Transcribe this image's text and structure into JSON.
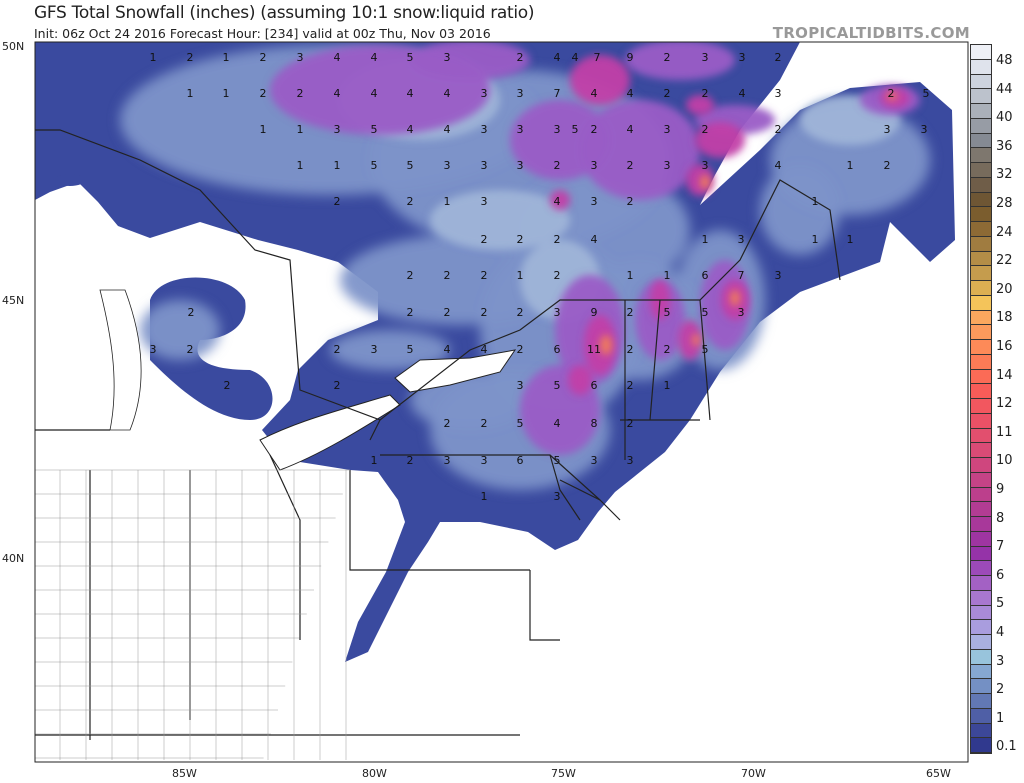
{
  "header": {
    "title": "GFS Total Snowfall (inches) (assuming 10:1 snow:liquid ratio)",
    "subtitle": "Init: 06z Oct 24 2016   Forecast Hour: [234]   valid at 00z Thu, Nov 03 2016",
    "brand": "TROPICALTIDBITS.COM"
  },
  "axes": {
    "lat_labels": [
      "50N",
      "45N",
      "40N"
    ],
    "lon_labels": [
      "85W",
      "80W",
      "75W",
      "70W",
      "65W"
    ]
  },
  "colorbar": {
    "labels": [
      "48",
      "44",
      "40",
      "36",
      "32",
      "28",
      "24",
      "22",
      "20",
      "18",
      "16",
      "14",
      "12",
      "11",
      "10",
      "9",
      "8",
      "7",
      "6",
      "5",
      "4",
      "3",
      "2",
      "1",
      "0.1"
    ],
    "colors": [
      "#eef0f6",
      "#dfe3ec",
      "#cdd3de",
      "#bcc2cc",
      "#aab0b9",
      "#979ca5",
      "#858a93",
      "#7e776e",
      "#776b5c",
      "#6f5d48",
      "#6e5634",
      "#7b5d2e",
      "#8d6a35",
      "#a07c40",
      "#b38d47",
      "#c59c4d",
      "#dcaf52",
      "#f4c45a",
      "#fba75e",
      "#fc9a5c",
      "#fd8a58",
      "#fc7b56",
      "#fb6b56",
      "#f85c58",
      "#f2575f",
      "#ea5166",
      "#e24f6e",
      "#d94b76",
      "#cf467e",
      "#c54386",
      "#bc3f8c",
      "#b23c93",
      "#a8389a",
      "#9e35a1",
      "#9533a8",
      "#9c4ab8",
      "#a361c4",
      "#a877cf",
      "#a98ad7",
      "#a99dde",
      "#a9b0e0",
      "#98c4dc",
      "#86a8d2",
      "#7490c4",
      "#6278b4",
      "#4f5fa6",
      "#3c4798",
      "#30398e"
    ],
    "map_colors": {
      "base": "#3a4a9f",
      "light_blue": "#7d93c9",
      "pale": "#9fb4d8",
      "purple": "#9a5cc6",
      "magenta": "#c23fa8",
      "orange": "#f07d5a"
    }
  },
  "contour_labels": [
    "1",
    "2",
    "1",
    "2",
    "3",
    "4",
    "4",
    "5",
    "3",
    "2",
    "4",
    "4",
    "7",
    "9",
    "2",
    "3",
    "3",
    "2",
    "1",
    "1",
    "2",
    "2",
    "4",
    "4",
    "4",
    "4",
    "3",
    "3",
    "7",
    "4",
    "4",
    "2",
    "2",
    "4",
    "3",
    "1",
    "1",
    "3",
    "5",
    "4",
    "4",
    "3",
    "3",
    "3",
    "5",
    "2",
    "4",
    "3",
    "2",
    "2",
    "2",
    "5",
    "3",
    "3",
    "1",
    "1",
    "5",
    "5",
    "3",
    "3",
    "3",
    "2",
    "3",
    "2",
    "3",
    "3",
    "4",
    "1",
    "2",
    "2",
    "2",
    "1",
    "3",
    "4",
    "3",
    "2",
    "1",
    "2",
    "2",
    "2",
    "4",
    "1",
    "3",
    "1",
    "1",
    "2",
    "2",
    "2",
    "1",
    "2",
    "1",
    "1",
    "6",
    "7",
    "3",
    "2",
    "2",
    "2",
    "2",
    "2",
    "3",
    "9",
    "2",
    "5",
    "5",
    "3",
    "3",
    "2",
    "2",
    "3",
    "5",
    "4",
    "4",
    "2",
    "6",
    "11",
    "2",
    "2",
    "5",
    "2",
    "2",
    "3",
    "5",
    "6",
    "2",
    "1",
    "2",
    "2",
    "5",
    "4",
    "8",
    "2",
    "1",
    "2",
    "3",
    "3",
    "6",
    "5",
    "3",
    "3",
    "1",
    "3"
  ]
}
